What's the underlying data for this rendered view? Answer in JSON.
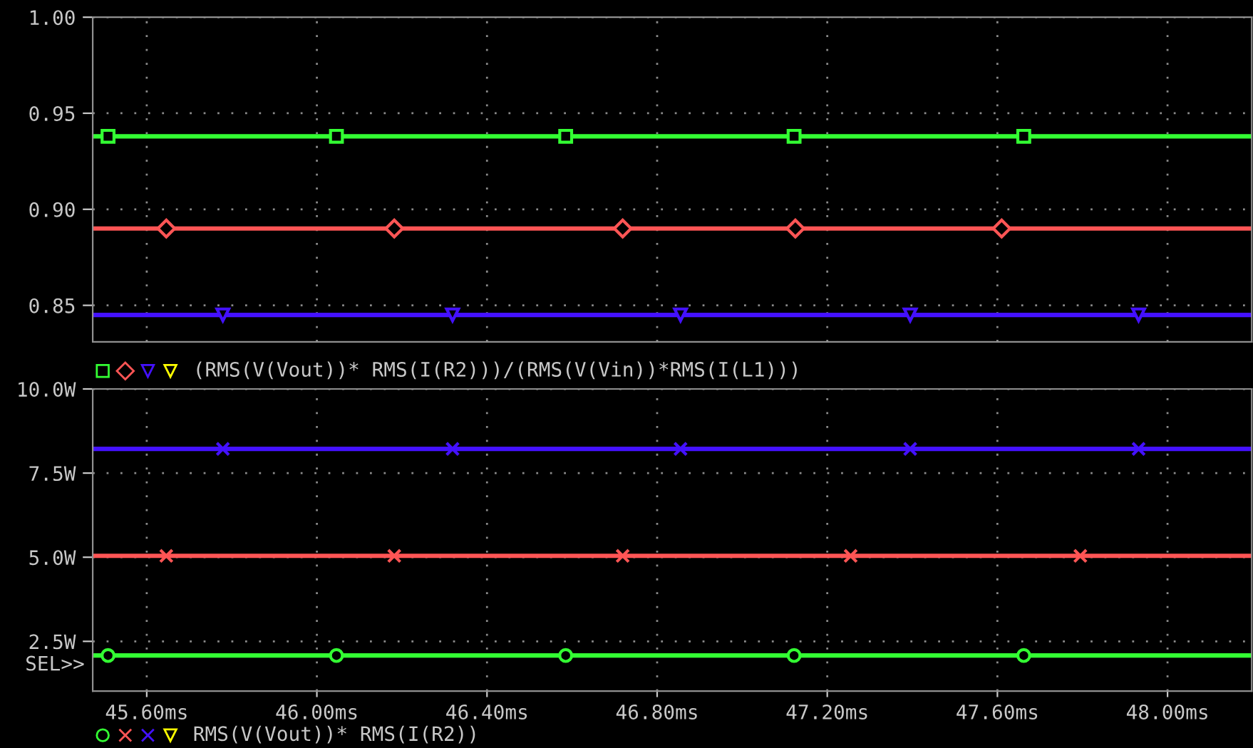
{
  "chart_data": [
    {
      "type": "line",
      "xlabel": "(RMS(V(Vout))* RMS(I(R2)))/(RMS(V(Vin))*RMS(I(L1)))",
      "xlim": [
        45.473,
        48.198
      ],
      "xticks": [
        {
          "value": 45.6,
          "label": null
        },
        {
          "value": 46.0,
          "label": null
        },
        {
          "value": 46.4,
          "label": null
        },
        {
          "value": 46.8,
          "label": null
        },
        {
          "value": 47.2,
          "label": null
        },
        {
          "value": 47.6,
          "label": null
        },
        {
          "value": 48.0,
          "label": null
        }
      ],
      "ylim": [
        0.831,
        1.0
      ],
      "yticks": [
        {
          "value": 0.85,
          "label": "0.85"
        },
        {
          "value": 0.9,
          "label": "0.90"
        },
        {
          "value": 0.95,
          "label": "0.95"
        },
        {
          "value": 1.0,
          "label": "1.00"
        }
      ],
      "tick_labels": "y",
      "grid": true,
      "series": [
        {
          "color": "#33ff33",
          "marker": "square",
          "x": [
            45.473,
            45.509,
            46.046,
            46.585,
            47.122,
            47.662,
            48.198
          ],
          "values": [
            0.938,
            0.938,
            0.938,
            0.938,
            0.938,
            0.938,
            0.938
          ]
        },
        {
          "color": "#ff5555",
          "marker": "diamond",
          "x": [
            45.473,
            45.646,
            46.182,
            46.719,
            47.125,
            47.61,
            48.198
          ],
          "values": [
            0.89,
            0.89,
            0.89,
            0.89,
            0.89,
            0.89,
            0.89
          ]
        },
        {
          "color": "#4411ff",
          "marker": "triangle",
          "x": [
            45.473,
            45.779,
            46.319,
            46.855,
            47.395,
            47.932,
            48.198
          ],
          "values": [
            0.845,
            0.845,
            0.845,
            0.845,
            0.845,
            0.845,
            0.845
          ]
        },
        {
          "color": "#ffff00",
          "marker": "triangle",
          "values": [
            null,
            null
          ]
        }
      ]
    },
    {
      "type": "line",
      "xlabel": "RMS(V(Vout))* RMS(I(R2))",
      "annotations": [
        "SEL>>"
      ],
      "xlim": [
        45.473,
        48.198
      ],
      "xticks": [
        {
          "value": 45.6,
          "label": "45.60ms"
        },
        {
          "value": 46.0,
          "label": "46.00ms"
        },
        {
          "value": 46.4,
          "label": "46.40ms"
        },
        {
          "value": 46.8,
          "label": "46.80ms"
        },
        {
          "value": 47.2,
          "label": "47.20ms"
        },
        {
          "value": 47.6,
          "label": "47.60ms"
        },
        {
          "value": 48.0,
          "label": "48.00ms"
        }
      ],
      "ylim": [
        1.02,
        10.0
      ],
      "yticks": [
        {
          "value": 2.5,
          "label": "2.5W"
        },
        {
          "value": 5.0,
          "label": "5.0W"
        },
        {
          "value": 7.5,
          "label": "7.5W"
        },
        {
          "value": 10.0,
          "label": "10.0W"
        }
      ],
      "grid": true,
      "series": [
        {
          "color": "#33ff33",
          "marker": "circle",
          "x": [
            45.473,
            45.509,
            46.046,
            46.585,
            47.122,
            47.662,
            48.198
          ],
          "values": [
            2.08,
            2.08,
            2.08,
            2.08,
            2.08,
            2.08,
            2.08
          ]
        },
        {
          "color": "#ff5555",
          "marker": "cross",
          "x": [
            45.473,
            45.646,
            46.182,
            46.719,
            47.255,
            47.795,
            48.198
          ],
          "values": [
            5.04,
            5.04,
            5.04,
            5.04,
            5.04,
            5.04,
            5.04
          ]
        },
        {
          "color": "#4411ff",
          "marker": "cross",
          "x": [
            45.473,
            45.779,
            46.319,
            46.855,
            47.395,
            47.932,
            48.198
          ],
          "values": [
            8.22,
            8.22,
            8.22,
            8.22,
            8.22,
            8.22,
            8.22
          ]
        },
        {
          "color": "#ffff00",
          "marker": "triangle",
          "values": [
            null,
            null
          ]
        }
      ]
    }
  ]
}
